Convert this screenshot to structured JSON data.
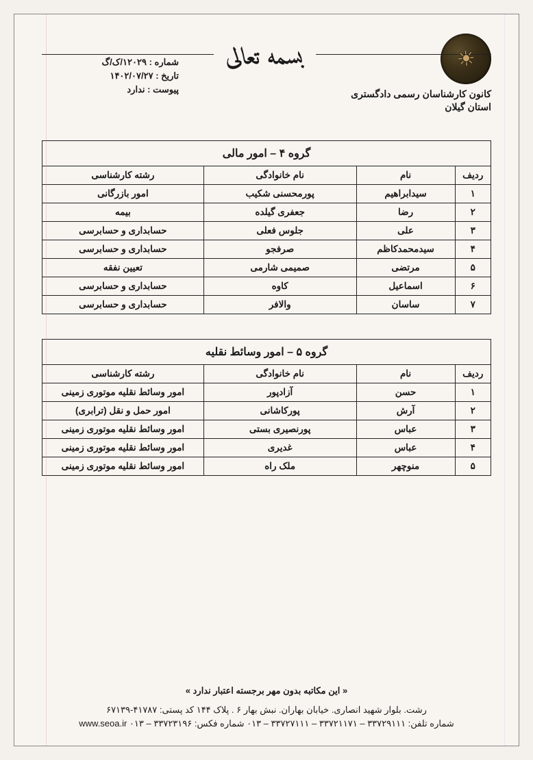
{
  "header": {
    "bismillah": "بسمه تعالی",
    "org_line1": "کانون کارشناسان رسمی دادگستری",
    "org_line2": "استان گیلان",
    "meta": {
      "number_label": "شماره :",
      "number_value": "۱۲۰۲۹/ک/گ",
      "date_label": "تاریخ :",
      "date_value": "۱۴۰۲/۰۷/۲۷",
      "attach_label": "پیوست :",
      "attach_value": "ندارد"
    }
  },
  "tables": {
    "group4": {
      "title": "گروه ۴ – امور مالی",
      "columns": {
        "row": "ردیف",
        "name": "نام",
        "family": "نام خانوادگی",
        "field": "رشته کارشناسی"
      },
      "rows": [
        {
          "n": "۱",
          "name": "سیدابراهیم",
          "family": "پورمحسنی شکیب",
          "field": "امور بازرگانی"
        },
        {
          "n": "۲",
          "name": "رضا",
          "family": "جعفری گیلده",
          "field": "بیمه"
        },
        {
          "n": "۳",
          "name": "علی",
          "family": "جلوس فعلی",
          "field": "حسابداری و حسابرسی"
        },
        {
          "n": "۴",
          "name": "سیدمحمدکاظم",
          "family": "صرفجو",
          "field": "حسابداری و حسابرسی"
        },
        {
          "n": "۵",
          "name": "مرتضی",
          "family": "صمیمی شارمی",
          "field": "تعیین نفقه"
        },
        {
          "n": "۶",
          "name": "اسماعیل",
          "family": "کاوه",
          "field": "حسابداری و حسابرسی"
        },
        {
          "n": "۷",
          "name": "ساسان",
          "family": "والافر",
          "field": "حسابداری و حسابرسی"
        }
      ]
    },
    "group5": {
      "title": "گروه ۵ – امور وسائط نقلیه",
      "columns": {
        "row": "ردیف",
        "name": "نام",
        "family": "نام خانوادگی",
        "field": "رشته کارشناسی"
      },
      "rows": [
        {
          "n": "۱",
          "name": "حسن",
          "family": "آزادپور",
          "field": "امور وسائط نقلیه موتوری زمینی"
        },
        {
          "n": "۲",
          "name": "آرش",
          "family": "پورکاشانی",
          "field": "امور حمل و نقل (ترابری)"
        },
        {
          "n": "۳",
          "name": "عباس",
          "family": "پورنصیری بستی",
          "field": "امور وسائط نقلیه موتوری زمینی"
        },
        {
          "n": "۴",
          "name": "عباس",
          "family": "غدیری",
          "field": "امور وسائط نقلیه موتوری زمینی"
        },
        {
          "n": "۵",
          "name": "منوچهر",
          "family": "ملک راه",
          "field": "امور وسائط نقلیه موتوری زمینی"
        }
      ]
    }
  },
  "footer": {
    "note": "« این مکاتبه بدون مهر برجسته اعتبار ندارد »",
    "address": "رشت. بلوار شهید انصاری.  خیابان بهاران.  نبش بهار ۶ . پلاک ۱۴۴   کد پستی: ۴۱۷۸۷-۶۷۱۳۹",
    "contacts": "شماره تلفن: ۳۳۷۲۹۱۱۱ – ۳۳۷۲۱۱۷۱ – ۳۳۷۲۷۱۱۱ – ۰۱۳   شماره فکس: ۳۳۷۲۳۱۹۶ – ۰۱۳   www.seoa.ir"
  }
}
